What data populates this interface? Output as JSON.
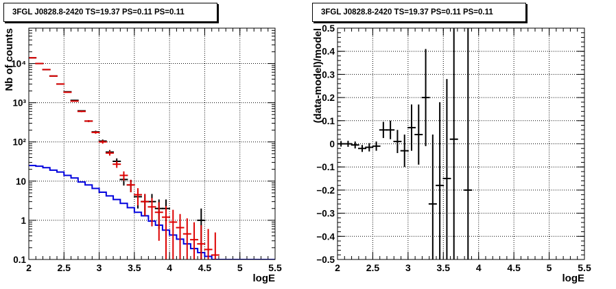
{
  "chart_data": [
    {
      "type": "step+errorbar",
      "title": "3FGL J0828.8-2420 TS=19.37 PS=0.11 PS=0.11",
      "xlabel": "logE",
      "ylabel": "Nb of counts",
      "xlim": [
        2,
        5.5
      ],
      "ylim": [
        0.1,
        80000
      ],
      "yscale": "log",
      "grid": true,
      "x_ticks": [
        "2",
        "2.5",
        "3",
        "3.5",
        "4",
        "4.5",
        "5",
        "5.5"
      ],
      "y_ticks": [
        "0.1",
        "1",
        "10",
        "10²",
        "10³",
        "10⁴"
      ],
      "bin_edges": [
        2.0,
        2.1,
        2.2,
        2.3,
        2.4,
        2.5,
        2.6,
        2.7,
        2.8,
        2.9,
        3.0,
        3.1,
        3.2,
        3.3,
        3.4,
        3.5,
        3.6,
        3.7,
        3.8,
        3.9,
        4.0,
        4.1,
        4.2,
        4.3,
        4.4,
        4.5,
        4.6,
        4.7,
        4.8,
        4.9,
        5.0,
        5.1,
        5.2,
        5.3,
        5.4,
        5.5
      ],
      "series": [
        {
          "name": "",
          "style": "step",
          "color": "#0000dd",
          "values": [
            25,
            24,
            22,
            19,
            17,
            14,
            12,
            9.5,
            8,
            6.5,
            5.2,
            4.2,
            3.4,
            2.7,
            2.1,
            1.6,
            1.3,
            0.95,
            0.75,
            0.56,
            0.42,
            0.33,
            0.25,
            0.19,
            0.15,
            0.12,
            0.1,
            0.1,
            0.1,
            0.1,
            0.1,
            0.1,
            0.1,
            0.1,
            0.1
          ]
        },
        {
          "name": "",
          "style": "errorbar",
          "color": "#000000",
          "x": [
            2.05,
            2.15,
            2.25,
            2.35,
            2.45,
            2.55,
            2.65,
            2.75,
            2.85,
            2.95,
            3.05,
            3.15,
            3.25,
            3.35,
            3.45,
            3.55,
            3.65,
            3.75,
            3.85,
            3.95,
            4.45
          ],
          "y": [
            14000,
            10000,
            7000,
            4800,
            3000,
            1900,
            1150,
            620,
            340,
            180,
            105,
            55,
            32,
            11,
            8,
            4,
            3,
            3,
            2,
            2,
            1
          ],
          "y_err": [
            120,
            100,
            85,
            70,
            55,
            45,
            35,
            25,
            18,
            13,
            10,
            7,
            6,
            3.3,
            2.8,
            2,
            1.7,
            1.7,
            1.4,
            1.4,
            1
          ]
        },
        {
          "name": "",
          "style": "errorbar",
          "color": "#dd0000",
          "x": [
            2.05,
            2.15,
            2.25,
            2.35,
            2.45,
            2.55,
            2.65,
            2.75,
            2.85,
            2.95,
            3.05,
            3.15,
            3.25,
            3.35,
            3.45,
            3.55,
            3.65,
            3.75,
            3.85,
            3.95,
            4.05,
            4.15,
            4.25,
            4.35,
            4.45,
            4.55,
            4.65
          ],
          "y": [
            14000,
            10000,
            7000,
            4800,
            3000,
            1850,
            1100,
            600,
            340,
            175,
            100,
            52,
            27,
            14,
            8,
            4.5,
            3,
            2.2,
            1.6,
            1.2,
            0.9,
            0.65,
            0.45,
            0.32,
            0.25,
            0.18,
            0.13
          ],
          "y_err": [
            120,
            100,
            85,
            70,
            55,
            43,
            33,
            25,
            18,
            13,
            10,
            7.2,
            5.2,
            3.7,
            2.8,
            2.1,
            1.7,
            1.5,
            1.3,
            1.1,
            0.95,
            0.8,
            0.67,
            0.57,
            0.5,
            0.42,
            0.36
          ]
        }
      ]
    },
    {
      "type": "errorbar",
      "title": "3FGL J0828.8-2420 TS=19.37 PS=0.11 PS=0.11",
      "xlabel": "logE",
      "ylabel": "(data-model)/model",
      "xlim": [
        2,
        5.5
      ],
      "ylim": [
        -0.5,
        0.5
      ],
      "grid": true,
      "x_ticks": [
        "2",
        "2.5",
        "3",
        "3.5",
        "4",
        "4.5",
        "5",
        "5.5"
      ],
      "y_ticks": [
        "−0.5",
        "−0.4",
        "−0.3",
        "−0.2",
        "−0.1",
        "0",
        "0.1",
        "0.2",
        "0.3",
        "0.4",
        "0.5"
      ],
      "series": [
        {
          "name": "",
          "color": "#000000",
          "x": [
            2.05,
            2.15,
            2.25,
            2.35,
            2.45,
            2.55,
            2.65,
            2.75,
            2.85,
            2.95,
            3.05,
            3.15,
            3.25,
            3.35,
            3.45,
            3.55,
            3.65,
            3.85
          ],
          "y": [
            0.0,
            0.0,
            -0.005,
            -0.02,
            -0.015,
            -0.01,
            0.06,
            0.06,
            0.01,
            -0.03,
            0.07,
            0.04,
            0.2,
            -0.26,
            -0.18,
            -0.15,
            0.02,
            -0.2
          ],
          "y_err": [
            0.012,
            0.013,
            0.015,
            0.015,
            0.018,
            0.02,
            0.035,
            0.04,
            0.05,
            0.07,
            0.1,
            0.13,
            0.21,
            0.3,
            0.36,
            0.43,
            0.55,
            0.75
          ]
        }
      ]
    }
  ]
}
